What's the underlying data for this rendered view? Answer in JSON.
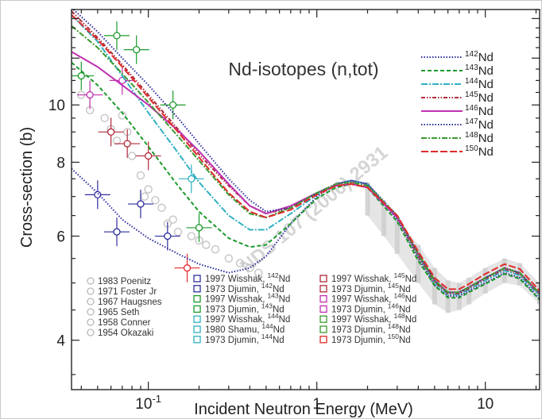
{
  "chart_data": {
    "type": "line",
    "title": "Nd-isotopes (n,tot)",
    "xlabel": "Incident Neutron Energy (MeV)",
    "ylabel": "Cross-section (b)",
    "x_scale": "log",
    "y_scale": "log",
    "xlim": [
      0.035,
      21
    ],
    "ylim": [
      3.3,
      14.5
    ],
    "x_ticks": [
      {
        "value": 0.1,
        "base": "10",
        "exp": "-1"
      },
      {
        "value": 1,
        "label": "1"
      },
      {
        "value": 10,
        "label": "10"
      }
    ],
    "y_ticks": [
      {
        "value": 4,
        "label": "4"
      },
      {
        "value": 6,
        "label": "6"
      },
      {
        "value": 8,
        "label": "8"
      },
      {
        "value": 10,
        "label": "10"
      }
    ],
    "watermark": "NDS 107 (2006) 2931",
    "series": [
      {
        "name": "142Nd",
        "mass": "142",
        "el": "Nd",
        "color": "#2e2e9e",
        "dash": "1.5,2",
        "x": [
          0.035,
          0.05,
          0.07,
          0.1,
          0.15,
          0.2,
          0.3,
          0.4,
          0.5,
          0.7,
          1,
          1.3,
          1.6,
          2,
          3,
          4,
          5,
          6,
          7,
          8,
          10,
          13,
          16,
          21
        ],
        "y": [
          7.8,
          7.1,
          6.4,
          5.95,
          5.6,
          5.38,
          5.2,
          5.3,
          5.55,
          6.3,
          7.0,
          7.35,
          7.45,
          7.35,
          6.4,
          5.5,
          4.95,
          4.75,
          4.75,
          4.85,
          5.0,
          5.2,
          5.1,
          4.7
        ]
      },
      {
        "name": "143Nd",
        "mass": "143",
        "el": "Nd",
        "color": "#1a9a2a",
        "dash": "5,3",
        "x": [
          0.035,
          0.05,
          0.07,
          0.1,
          0.15,
          0.2,
          0.3,
          0.4,
          0.5,
          0.7,
          1,
          1.3,
          1.6,
          2,
          3,
          4,
          5,
          6,
          7,
          8,
          10,
          13,
          16,
          21
        ],
        "y": [
          11.8,
          10.8,
          9.7,
          8.5,
          7.3,
          6.6,
          5.95,
          5.75,
          5.8,
          6.3,
          6.95,
          7.25,
          7.35,
          7.25,
          6.35,
          5.45,
          4.95,
          4.72,
          4.72,
          4.82,
          4.98,
          5.18,
          5.08,
          4.68
        ]
      },
      {
        "name": "144Nd",
        "mass": "144",
        "el": "Nd",
        "color": "#30b0c0",
        "dash": "8,2,2,2",
        "x": [
          0.035,
          0.05,
          0.07,
          0.1,
          0.15,
          0.2,
          0.3,
          0.4,
          0.5,
          0.7,
          1,
          1.3,
          1.6,
          2,
          3,
          4,
          5,
          6,
          7,
          8,
          10,
          13,
          16,
          21
        ],
        "y": [
          14.2,
          12.8,
          11.2,
          9.7,
          8.3,
          7.4,
          6.5,
          6.15,
          6.15,
          6.55,
          7.05,
          7.35,
          7.45,
          7.35,
          6.45,
          5.55,
          5.0,
          4.78,
          4.78,
          4.88,
          5.05,
          5.25,
          5.15,
          4.75
        ]
      },
      {
        "name": "145Nd",
        "mass": "145",
        "el": "Nd",
        "color": "#b02a3a",
        "dash": "5,2,1.5,2,1.5,2",
        "x": [
          0.035,
          0.05,
          0.07,
          0.1,
          0.15,
          0.2,
          0.3,
          0.4,
          0.5,
          0.7,
          1,
          1.3,
          1.6,
          2,
          3,
          4,
          5,
          6,
          7,
          8,
          10,
          13,
          16,
          21
        ],
        "y": [
          14.4,
          13.0,
          11.7,
          10.4,
          9.1,
          8.25,
          7.3,
          6.75,
          6.55,
          6.7,
          7.1,
          7.35,
          7.4,
          7.3,
          6.45,
          5.55,
          5.02,
          4.8,
          4.8,
          4.9,
          5.08,
          5.28,
          5.18,
          4.78
        ]
      },
      {
        "name": "146Nd",
        "mass": "146",
        "el": "Nd",
        "color": "#c030b0",
        "dash": "",
        "x": [
          0.035,
          0.05,
          0.07,
          0.1,
          0.15,
          0.2,
          0.3,
          0.4,
          0.5,
          0.7,
          1,
          1.3,
          1.6,
          2,
          3,
          4,
          5,
          6,
          7,
          8,
          10,
          13,
          16,
          21
        ],
        "y": [
          12.3,
          11.6,
          10.8,
          10.0,
          9.05,
          8.35,
          7.35,
          6.75,
          6.55,
          6.75,
          7.1,
          7.3,
          7.35,
          7.25,
          6.45,
          5.6,
          5.05,
          4.82,
          4.82,
          4.92,
          5.1,
          5.3,
          5.2,
          4.8
        ]
      },
      {
        "name": "147Nd",
        "mass": "147",
        "el": "Nd",
        "color": "#2e2e9e",
        "dash": "1.5,2",
        "x": [
          0.035,
          0.05,
          0.07,
          0.1,
          0.15,
          0.2,
          0.3,
          0.4,
          0.5,
          0.7,
          1,
          1.3,
          1.6,
          2,
          3,
          4,
          5,
          6,
          7,
          8,
          10,
          13,
          16,
          21
        ],
        "y": [
          14.6,
          13.3,
          12.0,
          10.8,
          9.5,
          8.6,
          7.5,
          6.9,
          6.6,
          6.7,
          7.1,
          7.35,
          7.45,
          7.35,
          6.5,
          5.6,
          5.05,
          4.82,
          4.82,
          4.92,
          5.1,
          5.3,
          5.2,
          4.8
        ]
      },
      {
        "name": "148Nd",
        "mass": "148",
        "el": "Nd",
        "color": "#3a9a30",
        "dash": "7,2,2,2",
        "x": [
          0.035,
          0.05,
          0.07,
          0.1,
          0.15,
          0.2,
          0.3,
          0.4,
          0.5,
          0.7,
          1,
          1.3,
          1.6,
          2,
          3,
          4,
          5,
          6,
          7,
          8,
          10,
          13,
          16,
          21
        ],
        "y": [
          13.6,
          12.5,
          11.3,
          10.1,
          8.85,
          8.05,
          7.05,
          6.55,
          6.45,
          6.7,
          7.1,
          7.35,
          7.4,
          7.3,
          6.5,
          5.6,
          5.05,
          4.82,
          4.82,
          4.92,
          5.1,
          5.3,
          5.2,
          4.8
        ]
      },
      {
        "name": "150Nd",
        "mass": "150",
        "el": "Nd",
        "color": "#e02a2a",
        "dash": "9,3",
        "x": [
          0.035,
          0.05,
          0.07,
          0.1,
          0.15,
          0.2,
          0.3,
          0.4,
          0.5,
          0.7,
          1,
          1.3,
          1.6,
          2,
          3,
          4,
          5,
          6,
          7,
          8,
          10,
          13,
          16,
          21
        ],
        "y": [
          14.2,
          12.9,
          11.6,
          10.3,
          9.0,
          8.15,
          7.1,
          6.6,
          6.45,
          6.65,
          7.05,
          7.3,
          7.35,
          7.25,
          6.5,
          5.65,
          5.1,
          4.88,
          4.88,
          4.98,
          5.18,
          5.38,
          5.28,
          4.85
        ]
      }
    ],
    "exp_legend_left": [
      {
        "label": "1983 Poenitz"
      },
      {
        "label": "1971 Foster Jr"
      },
      {
        "label": "1967 Haugsnes"
      },
      {
        "label": "1965 Seth"
      },
      {
        "label": "1958 Conner"
      },
      {
        "label": "1954 Okazaki"
      }
    ],
    "exp_legend_mid": [
      {
        "label": "1997 Wisshak,",
        "mass": "142",
        "el": "Nd",
        "color": "#2e2e9e"
      },
      {
        "label": "1973 Djumin,",
        "mass": "142",
        "el": "Nd",
        "color": "#2e2e9e"
      },
      {
        "label": "1997 Wisshak,",
        "mass": "143",
        "el": "Nd",
        "color": "#1a9a2a"
      },
      {
        "label": "1973 Djumin,",
        "mass": "143",
        "el": "Nd",
        "color": "#1a9a2a"
      },
      {
        "label": "1997 Wisshak,",
        "mass": "144",
        "el": "Nd",
        "color": "#30b0c0"
      },
      {
        "label": "1980 Shamu,",
        "mass": "144",
        "el": "Nd",
        "color": "#30b0c0"
      },
      {
        "label": "1973 Djumin,",
        "mass": "144",
        "el": "Nd",
        "color": "#30b0c0"
      }
    ],
    "exp_legend_right": [
      {
        "label": "1997 Wisshak,",
        "mass": "145",
        "el": "Nd",
        "color": "#b02a3a"
      },
      {
        "label": "1973 Djumin,",
        "mass": "145",
        "el": "Nd",
        "color": "#b02a3a"
      },
      {
        "label": "1997 Wisshak,",
        "mass": "146",
        "el": "Nd",
        "color": "#c030b0"
      },
      {
        "label": "1973 Djumin,",
        "mass": "146",
        "el": "Nd",
        "color": "#c030b0"
      },
      {
        "label": "1997 Wisshak,",
        "mass": "148",
        "el": "Nd",
        "color": "#3a9a30"
      },
      {
        "label": "1973 Djumin,",
        "mass": "148",
        "el": "Nd",
        "color": "#3a9a30"
      },
      {
        "label": "1973 Djumin,",
        "mass": "150",
        "el": "Nd",
        "color": "#e02a2a"
      }
    ],
    "exp_points": [
      {
        "x": 0.05,
        "y": 7.05,
        "color": "#2e2e9e"
      },
      {
        "x": 0.065,
        "y": 6.1,
        "color": "#2e2e9e"
      },
      {
        "x": 0.09,
        "y": 6.8,
        "color": "#2e2e9e"
      },
      {
        "x": 0.13,
        "y": 6.0,
        "color": "#2e2e9e"
      },
      {
        "x": 0.2,
        "y": 6.2,
        "color": "#1a9a2a"
      },
      {
        "x": 0.065,
        "y": 13.1,
        "color": "#1a9a2a"
      },
      {
        "x": 0.085,
        "y": 12.4,
        "color": "#1a9a2a"
      },
      {
        "x": 0.14,
        "y": 10.0,
        "color": "#1a9a2a"
      },
      {
        "x": 0.18,
        "y": 7.5,
        "color": "#30b0c0"
      },
      {
        "x": 0.045,
        "y": 10.4,
        "color": "#c030b0"
      },
      {
        "x": 0.07,
        "y": 11.0,
        "color": "#c030b0"
      },
      {
        "x": 0.06,
        "y": 9.0,
        "color": "#b02a3a"
      },
      {
        "x": 0.075,
        "y": 8.6,
        "color": "#b02a3a"
      },
      {
        "x": 0.1,
        "y": 8.2,
        "color": "#b02a3a"
      },
      {
        "x": 0.17,
        "y": 5.3,
        "color": "#e02a2a"
      },
      {
        "x": 0.04,
        "y": 11.2,
        "color": "#1a9a2a"
      }
    ],
    "grey_points": [
      {
        "x": 0.07,
        "y": 9.6
      },
      {
        "x": 0.075,
        "y": 9.0
      },
      {
        "x": 0.08,
        "y": 8.2
      },
      {
        "x": 0.09,
        "y": 7.6
      },
      {
        "x": 0.1,
        "y": 7.2
      },
      {
        "x": 0.11,
        "y": 6.9
      },
      {
        "x": 0.12,
        "y": 6.7
      },
      {
        "x": 0.13,
        "y": 6.3
      },
      {
        "x": 0.15,
        "y": 6.1
      },
      {
        "x": 0.18,
        "y": 6.0
      },
      {
        "x": 0.2,
        "y": 5.9
      },
      {
        "x": 0.25,
        "y": 5.7
      },
      {
        "x": 0.3,
        "y": 5.5
      },
      {
        "x": 0.35,
        "y": 5.4
      },
      {
        "x": 0.4,
        "y": 5.3
      },
      {
        "x": 0.45,
        "y": 5.2
      },
      {
        "x": 0.04,
        "y": 10.4
      },
      {
        "x": 0.045,
        "y": 9.8
      },
      {
        "x": 0.055,
        "y": 9.5
      },
      {
        "x": 0.06,
        "y": 9.1
      },
      {
        "x": 0.065,
        "y": 8.7
      },
      {
        "x": 0.095,
        "y": 7.0
      },
      {
        "x": 0.14,
        "y": 6.4
      },
      {
        "x": 0.22,
        "y": 5.8
      }
    ],
    "band": {
      "x": [
        2,
        2.5,
        3,
        4,
        5,
        6,
        7,
        8,
        10,
        13,
        16,
        21
      ],
      "lo": [
        6.5,
        6.0,
        5.6,
        5.0,
        4.6,
        4.45,
        4.5,
        4.6,
        4.8,
        5.0,
        4.95,
        4.6
      ],
      "hi": [
        7.4,
        6.9,
        6.4,
        5.8,
        5.3,
        5.05,
        5.0,
        5.1,
        5.3,
        5.5,
        5.4,
        5.0
      ]
    }
  }
}
